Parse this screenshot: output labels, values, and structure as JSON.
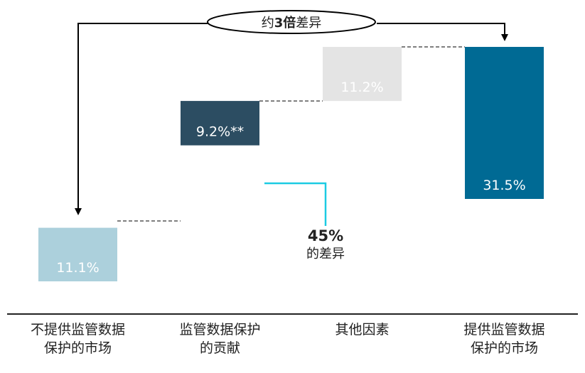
{
  "chart_data": {
    "type": "bar",
    "subtype": "waterfall",
    "categories": [
      [
        "不提供监管数据",
        "保护的市场"
      ],
      [
        "监管数据保护",
        "的贡献"
      ],
      [
        "其他因素"
      ],
      [
        "提供监管数据",
        "保护的市场"
      ]
    ],
    "values": [
      11.1,
      9.2,
      11.2,
      31.5
    ],
    "value_labels": [
      "11.1%",
      "9.2%**",
      "11.2%",
      "31.5%"
    ],
    "colors": [
      "#acd0dc",
      "#2c4d62",
      "#e4e4e4",
      "#006a94"
    ],
    "label_colors": [
      "#333333",
      "#ffffff",
      "#333333",
      "#ffffff"
    ],
    "ylim": [
      0,
      31.5
    ],
    "grid": false,
    "annotations": {
      "ratio_prefix": "约",
      "ratio_bold": "3倍",
      "ratio_suffix": "差异",
      "diff_value": "45%",
      "diff_text": "的差异"
    },
    "accent_color": "#1ccbe3",
    "arrow_color": "#000000"
  }
}
